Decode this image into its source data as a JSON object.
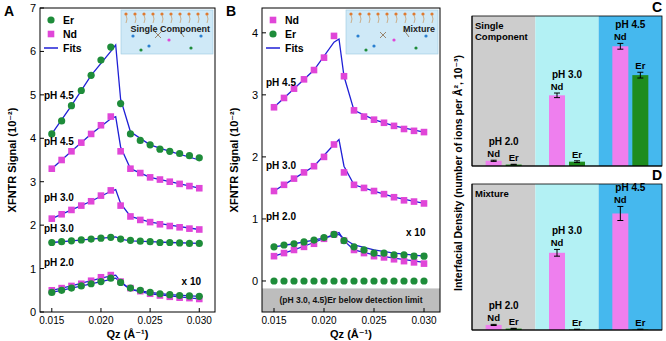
{
  "chart_data": [
    {
      "type": "scatter",
      "panel_label": "A",
      "inset": "Single Component",
      "xlabel": "Qz (Å⁻¹)",
      "ylabel": "XFNTR Signal (10⁻²)",
      "xlim": [
        0.0138,
        0.0316
      ],
      "ylim": [
        0,
        7
      ],
      "xticks": [
        0.015,
        {
          "value": 0.02,
          "label": "0.020"
        },
        0.025,
        {
          "value": 0.03,
          "label": "0.030"
        }
      ],
      "yticks": [
        0,
        1,
        2,
        3,
        4,
        5,
        6,
        7
      ],
      "legend": "upper left",
      "x": [
        0.015,
        0.016,
        0.017,
        0.018,
        0.019,
        0.02,
        0.021,
        0.022,
        0.023,
        0.024,
        0.025,
        0.026,
        0.027,
        0.028,
        0.029,
        0.03
      ],
      "series": [
        {
          "name": "Er",
          "color": "#1e8c3a",
          "marker": "circle",
          "values": [
            4.1,
            4.4,
            4.75,
            5.1,
            5.45,
            5.8,
            6.1,
            4.8,
            4.1,
            3.95,
            3.85,
            3.75,
            3.7,
            3.65,
            3.6,
            3.55
          ]
        },
        {
          "name": "Nd",
          "color": "#e046d8",
          "marker": "square",
          "values": [
            3.3,
            3.5,
            3.7,
            3.9,
            4.1,
            4.3,
            4.5,
            3.7,
            3.3,
            3.2,
            3.1,
            3.05,
            3.0,
            2.95,
            2.9,
            2.85
          ]
        },
        {
          "name": "Nd",
          "color": "#e046d8",
          "marker": "square",
          "values": [
            2.15,
            2.25,
            2.35,
            2.45,
            2.55,
            2.68,
            2.8,
            2.45,
            2.2,
            2.12,
            2.07,
            2.02,
            1.98,
            1.95,
            1.92,
            1.9
          ]
        },
        {
          "name": "Er",
          "color": "#1e8c3a",
          "marker": "circle",
          "values": [
            1.6,
            1.62,
            1.64,
            1.66,
            1.68,
            1.7,
            1.72,
            1.68,
            1.65,
            1.63,
            1.62,
            1.6,
            1.6,
            1.59,
            1.58,
            1.58
          ]
        },
        {
          "name": "Nd",
          "color": "#e046d8",
          "marker": "square",
          "values": [
            0.5,
            0.55,
            0.6,
            0.65,
            0.72,
            0.8,
            0.85,
            0.7,
            0.55,
            0.48,
            0.42,
            0.38,
            0.35,
            0.33,
            0.32,
            0.3
          ]
        },
        {
          "name": "Er",
          "color": "#1e8c3a",
          "marker": "circle",
          "values": [
            0.45,
            0.5,
            0.55,
            0.6,
            0.65,
            0.7,
            0.78,
            0.68,
            0.55,
            0.5,
            0.45,
            0.42,
            0.4,
            0.38,
            0.37,
            0.36
          ]
        },
        {
          "name": "Fits",
          "type": "line",
          "color": "#1f1fd6",
          "line_style": "solid",
          "x": [
            0.015,
            0.017,
            0.019,
            0.021,
            0.0215,
            0.022,
            0.023,
            0.025,
            0.027,
            0.03
          ],
          "values": [
            4.1,
            4.75,
            5.45,
            6.0,
            6.15,
            4.9,
            4.15,
            3.85,
            3.7,
            3.5
          ]
        },
        {
          "name": "Fits",
          "type": "line",
          "color": "#1f1fd6",
          "line_style": "solid",
          "x": [
            0.015,
            0.017,
            0.019,
            0.021,
            0.0215,
            0.022,
            0.023,
            0.025,
            0.027,
            0.03
          ],
          "values": [
            3.3,
            3.7,
            4.1,
            4.45,
            4.5,
            3.8,
            3.3,
            3.1,
            3.0,
            2.85
          ]
        },
        {
          "name": "Fits",
          "type": "line",
          "color": "#1f1fd6",
          "line_style": "solid",
          "x": [
            0.015,
            0.017,
            0.019,
            0.021,
            0.0215,
            0.022,
            0.023,
            0.025,
            0.027,
            0.03
          ],
          "values": [
            2.15,
            2.35,
            2.55,
            2.78,
            2.82,
            2.5,
            2.2,
            2.07,
            2.0,
            1.9
          ]
        },
        {
          "name": "Fits",
          "type": "line",
          "color": "#1f1fd6",
          "line_style": "solid",
          "x": [
            0.015,
            0.017,
            0.019,
            0.021,
            0.0215,
            0.022,
            0.023,
            0.025,
            0.027,
            0.03
          ],
          "values": [
            1.6,
            1.64,
            1.68,
            1.72,
            1.73,
            1.68,
            1.64,
            1.62,
            1.6,
            1.58
          ]
        },
        {
          "name": "Fits",
          "type": "line",
          "color": "#1f1fd6",
          "line_style": "solid",
          "x": [
            0.015,
            0.017,
            0.019,
            0.021,
            0.0215,
            0.022,
            0.023,
            0.025,
            0.027,
            0.03
          ],
          "values": [
            0.5,
            0.6,
            0.72,
            0.83,
            0.85,
            0.7,
            0.52,
            0.42,
            0.37,
            0.3
          ]
        },
        {
          "name": "Fits",
          "type": "line",
          "color": "#1f1fd6",
          "line_style": "solid",
          "x": [
            0.015,
            0.017,
            0.019,
            0.021,
            0.0215,
            0.022,
            0.023,
            0.025,
            0.027,
            0.03
          ],
          "values": [
            0.45,
            0.55,
            0.65,
            0.75,
            0.78,
            0.68,
            0.52,
            0.45,
            0.4,
            0.36
          ]
        }
      ],
      "annotations": [
        {
          "text": "pH 4.5",
          "x": 0.0142,
          "y": 4.9
        },
        {
          "text": "pH 4.5",
          "x": 0.0142,
          "y": 3.85
        },
        {
          "text": "pH 3.0",
          "x": 0.0142,
          "y": 2.55
        },
        {
          "text": "pH 3.0",
          "x": 0.0142,
          "y": 1.85
        },
        {
          "text": "pH 2.0",
          "x": 0.0142,
          "y": 1.05
        },
        {
          "text": "x 10",
          "x": 0.0282,
          "y": 0.62
        }
      ]
    },
    {
      "type": "scatter",
      "panel_label": "B",
      "inset": "Mixture",
      "xlabel": "Qz (Å⁻¹)",
      "ylabel": "XFNTR Signal (10⁻²)",
      "xlim": [
        0.0138,
        0.0316
      ],
      "ylim": [
        -0.5,
        4.4
      ],
      "xticks": [
        0.015,
        {
          "value": 0.02,
          "label": "0.020"
        },
        0.025,
        {
          "value": 0.03,
          "label": "0.030"
        }
      ],
      "yticks": [
        0,
        1,
        2,
        3,
        4
      ],
      "legend": "upper left",
      "band": {
        "y": [
          -0.5,
          -0.12
        ],
        "text": "(pH 3.0, 4.5)Er below detection limit"
      },
      "x": [
        0.015,
        0.016,
        0.017,
        0.018,
        0.019,
        0.02,
        0.021,
        0.022,
        0.023,
        0.024,
        0.025,
        0.026,
        0.027,
        0.028,
        0.029,
        0.03
      ],
      "series": [
        {
          "name": "Nd",
          "color": "#e046d8",
          "marker": "square",
          "values": [
            2.8,
            2.95,
            3.1,
            3.25,
            3.4,
            3.6,
            3.95,
            3.3,
            2.75,
            2.65,
            2.6,
            2.55,
            2.5,
            2.45,
            2.42,
            2.4
          ]
        },
        {
          "name": "Nd",
          "color": "#e046d8",
          "marker": "square",
          "values": [
            1.45,
            1.55,
            1.65,
            1.75,
            1.85,
            2.0,
            2.2,
            1.75,
            1.55,
            1.5,
            1.45,
            1.4,
            1.35,
            1.3,
            1.28,
            1.25
          ]
        },
        {
          "name": "Nd",
          "color": "#e046d8",
          "marker": "square",
          "values": [
            0.4,
            0.45,
            0.5,
            0.55,
            0.6,
            0.68,
            0.75,
            0.65,
            0.5,
            0.45,
            0.4,
            0.38,
            0.35,
            0.32,
            0.3,
            0.28
          ]
        },
        {
          "name": "Er",
          "color": "#1e8c3a",
          "marker": "circle",
          "values": [
            0.55,
            0.58,
            0.6,
            0.63,
            0.66,
            0.7,
            0.75,
            0.65,
            0.55,
            0.5,
            0.45,
            0.45,
            0.42,
            0.42,
            0.4,
            0.4
          ]
        },
        {
          "name": "Er",
          "color": "#1e8c3a",
          "marker": "circle",
          "values": [
            0,
            0,
            0,
            0,
            0,
            0,
            0,
            0,
            0,
            0,
            0,
            0,
            0,
            0,
            0,
            0
          ]
        },
        {
          "name": "Fits",
          "type": "line",
          "color": "#1f1fd6",
          "line_style": "solid",
          "x": [
            0.015,
            0.017,
            0.019,
            0.021,
            0.0215,
            0.022,
            0.023,
            0.025,
            0.027,
            0.03
          ],
          "values": [
            2.8,
            3.1,
            3.4,
            3.85,
            3.9,
            3.3,
            2.75,
            2.6,
            2.5,
            2.4
          ]
        },
        {
          "name": "Fits",
          "type": "line",
          "color": "#1f1fd6",
          "line_style": "solid",
          "x": [
            0.015,
            0.017,
            0.019,
            0.021,
            0.0215,
            0.022,
            0.023,
            0.025,
            0.027,
            0.03
          ],
          "values": [
            1.45,
            1.65,
            1.85,
            2.2,
            2.28,
            1.85,
            1.55,
            1.45,
            1.35,
            1.25
          ]
        },
        {
          "name": "Fits",
          "type": "line",
          "color": "#1f1fd6",
          "line_style": "solid",
          "x": [
            0.015,
            0.017,
            0.019,
            0.021,
            0.0215,
            0.022,
            0.023,
            0.025,
            0.027,
            0.03
          ],
          "values": [
            0.4,
            0.5,
            0.62,
            0.75,
            0.78,
            0.65,
            0.5,
            0.42,
            0.37,
            0.3
          ]
        },
        {
          "name": "Fits",
          "type": "line",
          "color": "#1f1fd6",
          "line_style": "solid",
          "x": [
            0.015,
            0.017,
            0.019,
            0.021,
            0.0215,
            0.022,
            0.023,
            0.025,
            0.027,
            0.03
          ],
          "values": [
            0.55,
            0.6,
            0.66,
            0.73,
            0.75,
            0.68,
            0.58,
            0.5,
            0.45,
            0.4
          ]
        }
      ],
      "annotations": [
        {
          "text": "pH 4.5",
          "x": 0.0142,
          "y": 3.15
        },
        {
          "text": "pH 3.0",
          "x": 0.0142,
          "y": 1.8
        },
        {
          "text": "pH 2.0",
          "x": 0.0142,
          "y": 0.98
        },
        {
          "text": "x 10",
          "x": 0.0282,
          "y": 0.72
        }
      ]
    },
    {
      "type": "bar",
      "panel_label": "C",
      "region_title": [
        "Single",
        "Component"
      ],
      "ylabel": "Interfacial Density (number of ions per Å², 10⁻³)",
      "categories": [
        "pH 2.0",
        "pH 3.0",
        "pH 4.5"
      ],
      "ylim": [
        0,
        5.2
      ],
      "tick_labels": false,
      "series": [
        {
          "name": "Nd",
          "color": "#ee7fee",
          "values": [
            0.18,
            2.45,
            4.15
          ],
          "errors": [
            0.02,
            0.08,
            0.1
          ]
        },
        {
          "name": "Er",
          "color": "#1e8c1e",
          "values": [
            0.05,
            0.15,
            3.15
          ],
          "errors": [
            0.01,
            0.03,
            0.1
          ]
        }
      ]
    },
    {
      "type": "bar",
      "panel_label": "D",
      "region_title": [
        "Mixture"
      ],
      "categories": [
        "pH 2.0",
        "pH 3.0",
        "pH 4.5"
      ],
      "ylim": [
        0,
        5.2
      ],
      "tick_labels": false,
      "series": [
        {
          "name": "Nd",
          "color": "#ee7fee",
          "values": [
            0.18,
            2.75,
            4.15
          ],
          "errors": [
            0.02,
            0.12,
            0.25
          ]
        },
        {
          "name": "Er",
          "color": "#1e8c1e",
          "values": [
            0.05,
            0.02,
            0.02
          ],
          "errors": [
            0.01,
            0.01,
            0.01
          ]
        }
      ]
    }
  ]
}
